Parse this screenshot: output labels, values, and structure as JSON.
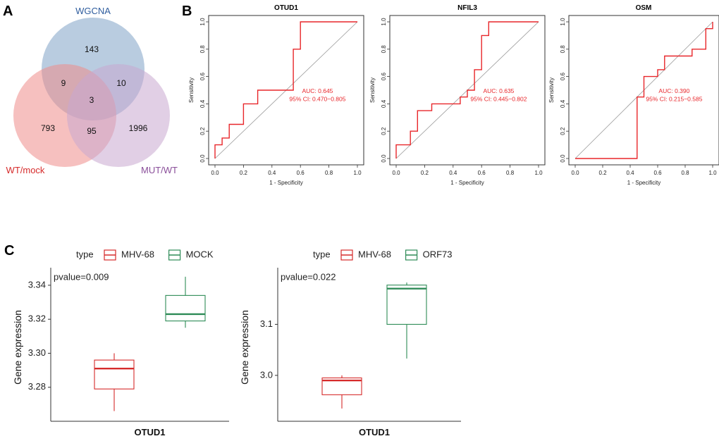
{
  "panels": {
    "a": "A",
    "b": "B",
    "c": "C"
  },
  "venn": {
    "sets": [
      {
        "name": "WGCNA",
        "color": "#7fa3c6"
      },
      {
        "name": "WT/mock",
        "color": "#ef8c8a"
      },
      {
        "name": "MUT/WT",
        "color": "#c8a8cf"
      }
    ],
    "label_colors": {
      "WGCNA": "#2f5d9e",
      "WT/mock": "#d62b2b",
      "MUT/WT": "#8a4f9a"
    },
    "regions": {
      "wgcna_only": "143",
      "wgcna_wtmock": "9",
      "wgcna_mutwt": "10",
      "all_three": "3",
      "wtmock_only": "793",
      "wtmock_mutwt": "95",
      "mutwt_only": "1996"
    }
  },
  "chart_data": [
    {
      "type": "line",
      "title": "OTUD1",
      "xlabel": "1 - Specificity",
      "ylabel": "Sensitivity",
      "xlim": [
        0,
        1
      ],
      "ylim": [
        0,
        1
      ],
      "ticks": [
        "0.0",
        "0.2",
        "0.4",
        "0.6",
        "0.8",
        "1.0"
      ],
      "auc_text": "AUC: 0.645",
      "ci_text": "95% CI: 0.470−0.805",
      "roc": [
        [
          0,
          0
        ],
        [
          0,
          0.1
        ],
        [
          0.05,
          0.1
        ],
        [
          0.05,
          0.15
        ],
        [
          0.1,
          0.15
        ],
        [
          0.1,
          0.25
        ],
        [
          0.2,
          0.25
        ],
        [
          0.2,
          0.4
        ],
        [
          0.3,
          0.4
        ],
        [
          0.3,
          0.5
        ],
        [
          0.55,
          0.5
        ],
        [
          0.55,
          0.8
        ],
        [
          0.6,
          0.8
        ],
        [
          0.6,
          1.0
        ],
        [
          1.0,
          1.0
        ]
      ],
      "line_color": "#e8262a"
    },
    {
      "type": "line",
      "title": "NFIL3",
      "xlabel": "1 - Specificity",
      "ylabel": "Sensitivity",
      "xlim": [
        0,
        1
      ],
      "ylim": [
        0,
        1
      ],
      "ticks": [
        "0.0",
        "0.2",
        "0.4",
        "0.6",
        "0.8",
        "1.0"
      ],
      "auc_text": "AUC: 0.635",
      "ci_text": "95% CI: 0.445−0.802",
      "roc": [
        [
          0,
          0
        ],
        [
          0,
          0.1
        ],
        [
          0.1,
          0.1
        ],
        [
          0.1,
          0.2
        ],
        [
          0.15,
          0.2
        ],
        [
          0.15,
          0.35
        ],
        [
          0.25,
          0.35
        ],
        [
          0.25,
          0.4
        ],
        [
          0.45,
          0.4
        ],
        [
          0.45,
          0.45
        ],
        [
          0.5,
          0.45
        ],
        [
          0.5,
          0.5
        ],
        [
          0.55,
          0.5
        ],
        [
          0.55,
          0.65
        ],
        [
          0.6,
          0.65
        ],
        [
          0.6,
          0.9
        ],
        [
          0.65,
          0.9
        ],
        [
          0.65,
          1.0
        ],
        [
          1.0,
          1.0
        ]
      ],
      "line_color": "#e8262a"
    },
    {
      "type": "line",
      "title": "OSM",
      "xlabel": "1 - Specificity",
      "ylabel": "Sensitivity",
      "xlim": [
        0,
        1
      ],
      "ylim": [
        0,
        1
      ],
      "ticks": [
        "0.0",
        "0.2",
        "0.4",
        "0.6",
        "0.8",
        "1.0"
      ],
      "auc_text": "AUC: 0.390",
      "ci_text": "95% CI: 0.215−0.585",
      "roc": [
        [
          0,
          0
        ],
        [
          0.45,
          0
        ],
        [
          0.45,
          0.45
        ],
        [
          0.5,
          0.45
        ],
        [
          0.5,
          0.6
        ],
        [
          0.6,
          0.6
        ],
        [
          0.6,
          0.65
        ],
        [
          0.65,
          0.65
        ],
        [
          0.65,
          0.75
        ],
        [
          0.85,
          0.75
        ],
        [
          0.85,
          0.8
        ],
        [
          0.95,
          0.8
        ],
        [
          0.95,
          0.95
        ],
        [
          1.0,
          0.95
        ],
        [
          1.0,
          1.0
        ]
      ],
      "line_color": "#e8262a"
    },
    {
      "type": "box",
      "legend_title": "type",
      "legend": [
        {
          "name": "MHV-68",
          "color": "#d62b2b"
        },
        {
          "name": "MOCK",
          "color": "#2e8b57"
        }
      ],
      "pvalue_text": "pvalue=0.009",
      "ylabel": "Gene expression",
      "xlabel": "OTUD1",
      "ylim": [
        3.26,
        3.347
      ],
      "yticks": [
        "3.28",
        "3.30",
        "3.32",
        "3.34"
      ],
      "boxes": [
        {
          "group": "MHV-68",
          "color": "#d62b2b",
          "min": 3.266,
          "q1": 3.279,
          "median": 3.291,
          "q3": 3.296,
          "max": 3.3
        },
        {
          "group": "MOCK",
          "color": "#2e8b57",
          "min": 3.315,
          "q1": 3.319,
          "median": 3.323,
          "q3": 3.334,
          "max": 3.345
        }
      ]
    },
    {
      "type": "box",
      "legend_title": "type",
      "legend": [
        {
          "name": "MHV-68",
          "color": "#d62b2b"
        },
        {
          "name": "ORF73",
          "color": "#2e8b57"
        }
      ],
      "pvalue_text": "pvalue=0.022",
      "ylabel": "Gene expression",
      "xlabel": "OTUD1",
      "ylim": [
        2.91,
        3.2
      ],
      "yticks": [
        "3.0",
        "3.1"
      ],
      "boxes": [
        {
          "group": "MHV-68",
          "color": "#d62b2b",
          "min": 2.935,
          "q1": 2.962,
          "median": 2.99,
          "q3": 2.995,
          "max": 3.0
        },
        {
          "group": "ORF73",
          "color": "#2e8b57",
          "min": 3.033,
          "q1": 3.1,
          "median": 3.17,
          "q3": 3.177,
          "max": 3.182
        }
      ]
    }
  ]
}
